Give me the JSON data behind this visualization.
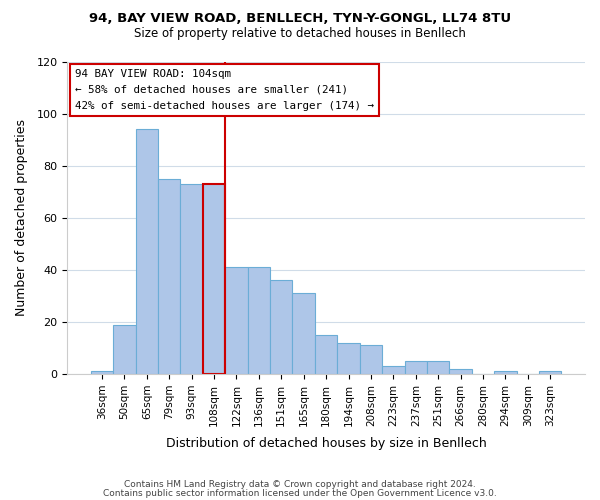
{
  "title1": "94, BAY VIEW ROAD, BENLLECH, TYN-Y-GONGL, LL74 8TU",
  "title2": "Size of property relative to detached houses in Benllech",
  "xlabel": "Distribution of detached houses by size in Benllech",
  "ylabel": "Number of detached properties",
  "bar_labels": [
    "36sqm",
    "50sqm",
    "65sqm",
    "79sqm",
    "93sqm",
    "108sqm",
    "122sqm",
    "136sqm",
    "151sqm",
    "165sqm",
    "180sqm",
    "194sqm",
    "208sqm",
    "223sqm",
    "237sqm",
    "251sqm",
    "266sqm",
    "280sqm",
    "294sqm",
    "309sqm",
    "323sqm"
  ],
  "bar_values": [
    1,
    19,
    94,
    75,
    73,
    73,
    41,
    41,
    36,
    31,
    15,
    12,
    11,
    3,
    5,
    5,
    2,
    0,
    1,
    0,
    1
  ],
  "bar_color": "#aec6e8",
  "bar_edge_color": "#6badd6",
  "highlight_bar_index": 5,
  "highlight_edge_color": "#cc0000",
  "vline_color": "#cc0000",
  "annotation_title": "94 BAY VIEW ROAD: 104sqm",
  "annotation_line1": "← 58% of detached houses are smaller (241)",
  "annotation_line2": "42% of semi-detached houses are larger (174) →",
  "box_edge_color": "#cc0000",
  "ylim": [
    0,
    120
  ],
  "yticks": [
    0,
    20,
    40,
    60,
    80,
    100,
    120
  ],
  "footer1": "Contains HM Land Registry data © Crown copyright and database right 2024.",
  "footer2": "Contains public sector information licensed under the Open Government Licence v3.0.",
  "bg_color": "#ffffff",
  "grid_color": "#d0dce8"
}
